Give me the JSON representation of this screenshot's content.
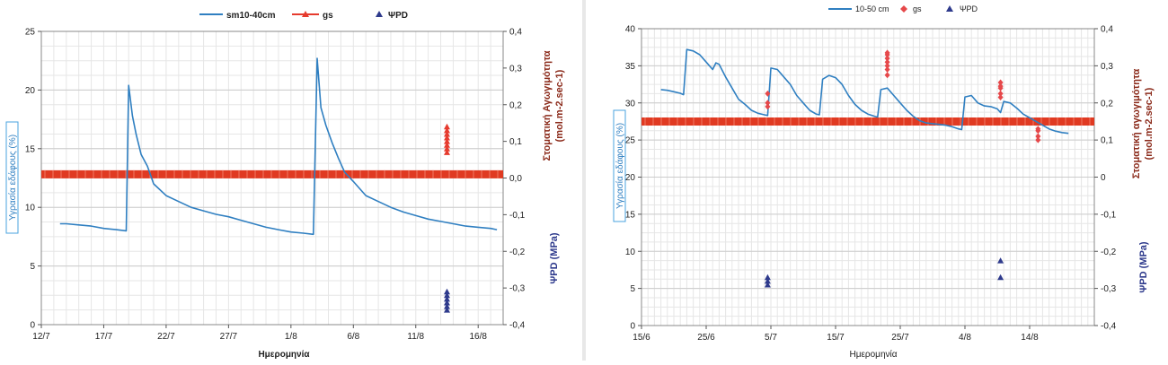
{
  "charts": [
    {
      "legend": {
        "sm": "sm10-40cm",
        "gs": "gs",
        "psi": "ΨPD"
      },
      "xlabel": "Ημερομηνία",
      "ylabel_left": "Υγρασία εδάφους (%)",
      "ylabel_right": "Στοματική Αγωγιμότητα",
      "ylabel_right_units": "(mol.m-2.sec-1)",
      "ylabel_psi": "ΨPD (MPa)"
    },
    {
      "legend": {
        "sm": "10-50 cm",
        "gs": "gs",
        "psi": "ΨPD"
      },
      "xlabel": "Ημερομηνία",
      "ylabel_left": "Υγρασία εδάφους (%)",
      "ylabel_right": "Στοματική αγωγιμότητα",
      "ylabel_right_units": "(mol.m-2.sec-1)",
      "ylabel_psi": "ΨPD (MPa)"
    }
  ],
  "chart_data": [
    {
      "type": "line",
      "x_ticks": [
        {
          "day": 0,
          "label": "12/7"
        },
        {
          "day": 5,
          "label": "17/7"
        },
        {
          "day": 10,
          "label": "22/7"
        },
        {
          "day": 15,
          "label": "27/7"
        },
        {
          "day": 20,
          "label": "1/8"
        },
        {
          "day": 25,
          "label": "6/8"
        },
        {
          "day": 30,
          "label": "11/8"
        },
        {
          "day": 35,
          "label": "16/8"
        }
      ],
      "xlim_days": [
        0,
        37
      ],
      "y_left": {
        "min": 0,
        "max": 25,
        "ticks": [
          "0",
          "5",
          "10",
          "15",
          "20",
          "25"
        ]
      },
      "y_right": {
        "min": -0.4,
        "max": 0.4,
        "ticks": [
          "-0,4",
          "-0,3",
          "-0,2",
          "-0,1",
          "0,0",
          "0,1",
          "0,2",
          "0,3",
          "0,4"
        ]
      },
      "series": [
        {
          "name": "sm10-40cm",
          "axis": "left",
          "color": "#2f7fc1",
          "points": [
            [
              1.5,
              8.6
            ],
            [
              2,
              8.6
            ],
            [
              3,
              8.5
            ],
            [
              4,
              8.4
            ],
            [
              5,
              8.2
            ],
            [
              6,
              8.1
            ],
            [
              6.8,
              8.0
            ],
            [
              7.0,
              20.4
            ],
            [
              7.3,
              17.8
            ],
            [
              7.6,
              16.2
            ],
            [
              8,
              14.5
            ],
            [
              8.5,
              13.5
            ],
            [
              9,
              12
            ],
            [
              10,
              11
            ],
            [
              11,
              10.5
            ],
            [
              12,
              10
            ],
            [
              13,
              9.7
            ],
            [
              14,
              9.4
            ],
            [
              15,
              9.2
            ],
            [
              16,
              8.9
            ],
            [
              17,
              8.6
            ],
            [
              18,
              8.3
            ],
            [
              19,
              8.1
            ],
            [
              20,
              7.9
            ],
            [
              21,
              7.8
            ],
            [
              21.8,
              7.7
            ],
            [
              22.1,
              22.7
            ],
            [
              22.4,
              18.5
            ],
            [
              22.8,
              17
            ],
            [
              23.3,
              15.5
            ],
            [
              23.8,
              14.2
            ],
            [
              24.3,
              13
            ],
            [
              25,
              12.2
            ],
            [
              26,
              11
            ],
            [
              27,
              10.5
            ],
            [
              28,
              10
            ],
            [
              29,
              9.6
            ],
            [
              30,
              9.3
            ],
            [
              31,
              9.0
            ],
            [
              32,
              8.8
            ],
            [
              33,
              8.6
            ],
            [
              34,
              8.4
            ],
            [
              35,
              8.3
            ],
            [
              36,
              8.2
            ],
            [
              36.5,
              8.1
            ]
          ]
        },
        {
          "name": "gs",
          "axis": "right",
          "color": "#e63b2e",
          "points": [
            [
              32.5,
              0.07
            ],
            [
              32.5,
              0.08
            ],
            [
              32.5,
              0.09
            ],
            [
              32.5,
              0.1
            ],
            [
              32.5,
              0.11
            ],
            [
              32.5,
              0.12
            ],
            [
              32.5,
              0.13
            ],
            [
              32.5,
              0.14
            ]
          ]
        },
        {
          "name": "ΨPD",
          "axis": "right",
          "color": "#2e3a8c",
          "points": [
            [
              32.5,
              -0.36
            ],
            [
              32.5,
              -0.35
            ],
            [
              32.5,
              -0.34
            ],
            [
              32.5,
              -0.33
            ],
            [
              32.5,
              -0.32
            ],
            [
              32.5,
              -0.31
            ]
          ]
        }
      ],
      "threshold": {
        "axis": "right",
        "value": 0.01,
        "color": "#e03a22"
      }
    },
    {
      "type": "line",
      "x_ticks": [
        {
          "day": 0,
          "label": "15/6"
        },
        {
          "day": 10,
          "label": "25/6"
        },
        {
          "day": 20,
          "label": "5/7"
        },
        {
          "day": 30,
          "label": "15/7"
        },
        {
          "day": 40,
          "label": "25/7"
        },
        {
          "day": 50,
          "label": "4/8"
        },
        {
          "day": 60,
          "label": "14/8"
        }
      ],
      "xlim_days": [
        0,
        70
      ],
      "y_left": {
        "min": 0,
        "max": 40,
        "ticks": [
          "0",
          "5",
          "10",
          "15",
          "20",
          "25",
          "30",
          "35",
          "40"
        ]
      },
      "y_right": {
        "min": -0.4,
        "max": 0.4,
        "ticks": [
          "-0,4",
          "-0,3",
          "-0,2",
          "-0,1",
          "0",
          "0,1",
          "0,2",
          "0,3",
          "0,4"
        ]
      },
      "series": [
        {
          "name": "10-50 cm",
          "axis": "left",
          "color": "#2f7fc1",
          "points": [
            [
              3,
              31.8
            ],
            [
              4,
              31.7
            ],
            [
              5,
              31.5
            ],
            [
              6,
              31.3
            ],
            [
              6.5,
              31.1
            ],
            [
              7,
              37.2
            ],
            [
              8,
              37
            ],
            [
              9,
              36.5
            ],
            [
              10,
              35.5
            ],
            [
              11,
              34.5
            ],
            [
              11.5,
              35.4
            ],
            [
              12,
              35.2
            ],
            [
              13,
              33.5
            ],
            [
              14,
              32
            ],
            [
              15,
              30.5
            ],
            [
              16,
              29.8
            ],
            [
              17,
              29
            ],
            [
              18,
              28.6
            ],
            [
              19,
              28.4
            ],
            [
              19.5,
              28.3
            ],
            [
              20,
              34.7
            ],
            [
              21,
              34.5
            ],
            [
              22,
              33.5
            ],
            [
              23,
              32.5
            ],
            [
              24,
              31
            ],
            [
              25,
              30
            ],
            [
              26,
              29
            ],
            [
              27,
              28.5
            ],
            [
              27.5,
              28.4
            ],
            [
              28,
              33.2
            ],
            [
              29,
              33.7
            ],
            [
              30,
              33.4
            ],
            [
              31,
              32.5
            ],
            [
              32,
              31
            ],
            [
              33,
              29.8
            ],
            [
              34,
              29
            ],
            [
              35,
              28.5
            ],
            [
              36,
              28.2
            ],
            [
              36.5,
              28.1
            ],
            [
              37,
              31.8
            ],
            [
              38,
              32
            ],
            [
              39,
              31
            ],
            [
              40,
              30
            ],
            [
              41,
              29
            ],
            [
              42,
              28.2
            ],
            [
              43,
              27.6
            ],
            [
              44,
              27.3
            ],
            [
              45,
              27.2
            ],
            [
              46,
              27.1
            ],
            [
              47,
              27.0
            ],
            [
              48,
              26.8
            ],
            [
              49,
              26.5
            ],
            [
              49.5,
              26.4
            ],
            [
              50,
              30.8
            ],
            [
              51,
              31
            ],
            [
              52,
              30
            ],
            [
              53,
              29.6
            ],
            [
              54,
              29.5
            ],
            [
              55,
              29.2
            ],
            [
              55.5,
              28.7
            ],
            [
              56,
              30.2
            ],
            [
              57,
              30
            ],
            [
              58,
              29.3
            ],
            [
              59,
              28.5
            ],
            [
              60,
              28
            ],
            [
              61,
              27.5
            ],
            [
              62,
              27
            ],
            [
              63,
              26.5
            ],
            [
              64,
              26.2
            ],
            [
              65,
              26
            ],
            [
              66,
              25.9
            ]
          ]
        },
        {
          "name": "gs",
          "axis": "right",
          "color": "#e6484a",
          "points": [
            [
              19.5,
              0.19
            ],
            [
              19.5,
              0.2
            ],
            [
              19.5,
              0.225
            ],
            [
              38,
              0.275
            ],
            [
              38,
              0.29
            ],
            [
              38,
              0.3
            ],
            [
              38,
              0.31
            ],
            [
              38,
              0.32
            ],
            [
              38,
              0.33
            ],
            [
              38,
              0.335
            ],
            [
              55.5,
              0.215
            ],
            [
              55.5,
              0.225
            ],
            [
              55.5,
              0.24
            ],
            [
              55.5,
              0.245
            ],
            [
              55.5,
              0.255
            ],
            [
              61.3,
              0.1
            ],
            [
              61.3,
              0.11
            ],
            [
              61.3,
              0.125
            ],
            [
              61.3,
              0.13
            ]
          ]
        },
        {
          "name": "ΨPD",
          "axis": "right",
          "color": "#2e3a8c",
          "points": [
            [
              19.5,
              -0.29
            ],
            [
              19.5,
              -0.28
            ],
            [
              19.5,
              -0.27
            ],
            [
              55.5,
              -0.27
            ],
            [
              55.5,
              -0.225
            ]
          ]
        }
      ],
      "threshold": {
        "axis": "right",
        "value": 0.15,
        "color": "#e03a22"
      }
    }
  ]
}
